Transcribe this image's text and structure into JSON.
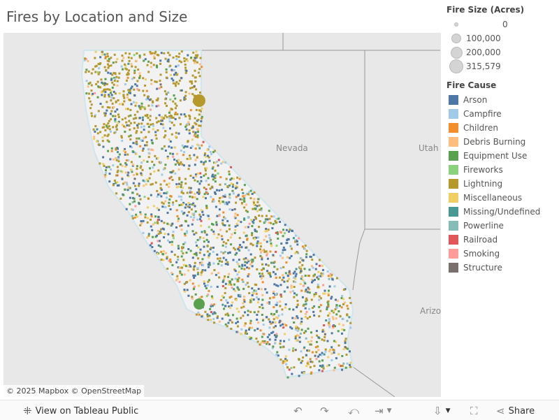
{
  "title": "Fires by Location and Size",
  "map": {
    "state_labels": [
      "Nevada",
      "Utah",
      "Arizo"
    ],
    "attribution": "© 2025 Mapbox  © OpenStreetMap"
  },
  "size_legend": {
    "title": "Fire Size (Acres)",
    "items": [
      "0",
      "100,000",
      "200,000",
      "315,579"
    ]
  },
  "cause_legend": {
    "title": "Fire Cause",
    "items": [
      {
        "label": "Arson",
        "color": "#4e79a7"
      },
      {
        "label": "Campfire",
        "color": "#a0cbe8"
      },
      {
        "label": "Children",
        "color": "#f28e2b"
      },
      {
        "label": "Debris Burning",
        "color": "#ffbe7d"
      },
      {
        "label": "Equipment Use",
        "color": "#59a14f"
      },
      {
        "label": "Fireworks",
        "color": "#8cd17d"
      },
      {
        "label": "Lightning",
        "color": "#b6992d"
      },
      {
        "label": "Miscellaneous",
        "color": "#f1ce63"
      },
      {
        "label": "Missing/Undefined",
        "color": "#499894"
      },
      {
        "label": "Powerline",
        "color": "#86bcb6"
      },
      {
        "label": "Railroad",
        "color": "#e15759"
      },
      {
        "label": "Smoking",
        "color": "#ff9d9a"
      },
      {
        "label": "Structure",
        "color": "#79706e"
      }
    ]
  },
  "toolbar": {
    "view_label": "View on Tableau Public",
    "share_label": "Share"
  }
}
